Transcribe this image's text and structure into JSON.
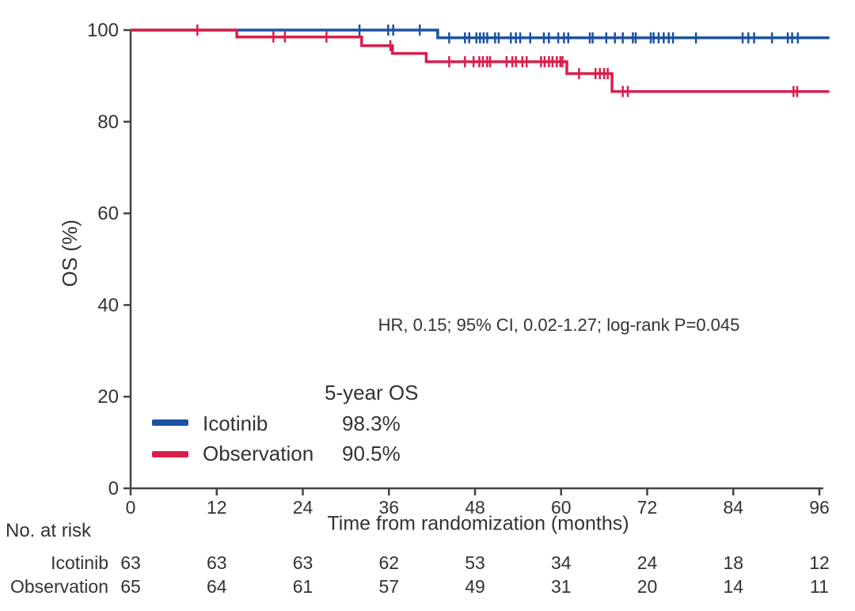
{
  "chart_data": {
    "type": "line",
    "subtype": "kaplan-meier-step",
    "title": "",
    "xlabel": "Time from randomization (months)",
    "ylabel": "OS (%)",
    "xlim": [
      0,
      96
    ],
    "ylim": [
      0,
      100
    ],
    "xticks": [
      0,
      12,
      24,
      36,
      48,
      60,
      72,
      84,
      96
    ],
    "yticks": [
      0,
      20,
      40,
      60,
      80,
      100
    ],
    "grid": false,
    "axis_color": "#444444",
    "annotation": "HR, 0.15; 95% CI, 0.02-1.27; log-rank P=0.045",
    "legend": {
      "header": "5-year OS",
      "position": "lower-left",
      "items": [
        {
          "label": "Icotinib",
          "value": "98.3%",
          "color": "#1d52a2"
        },
        {
          "label": "Observation",
          "value": "90.5%",
          "color": "#d91e4c"
        }
      ]
    },
    "series": [
      {
        "name": "Icotinib",
        "color": "#1d52a2",
        "steps": [
          [
            0,
            100
          ],
          [
            42.8,
            100
          ],
          [
            42.8,
            98.3
          ],
          [
            97.4,
            98.3
          ]
        ],
        "censors": [
          [
            31.9,
            100
          ],
          [
            35.9,
            100
          ],
          [
            36.6,
            100
          ],
          [
            40.3,
            100
          ],
          [
            44.4,
            98.3
          ],
          [
            46.6,
            98.3
          ],
          [
            47.2,
            98.3
          ],
          [
            48.2,
            98.3
          ],
          [
            48.7,
            98.3
          ],
          [
            49.2,
            98.3
          ],
          [
            49.7,
            98.3
          ],
          [
            50.8,
            98.3
          ],
          [
            51.3,
            98.3
          ],
          [
            53.0,
            98.3
          ],
          [
            53.7,
            98.3
          ],
          [
            54.3,
            98.3
          ],
          [
            55.7,
            98.3
          ],
          [
            57.6,
            98.3
          ],
          [
            58.3,
            98.3
          ],
          [
            59.6,
            98.3
          ],
          [
            60.4,
            98.3
          ],
          [
            61.0,
            98.3
          ],
          [
            64.0,
            98.3
          ],
          [
            64.4,
            98.3
          ],
          [
            66.3,
            98.3
          ],
          [
            67.5,
            98.3
          ],
          [
            68.6,
            98.3
          ],
          [
            70.0,
            98.3
          ],
          [
            70.4,
            98.3
          ],
          [
            72.5,
            98.3
          ],
          [
            72.9,
            98.3
          ],
          [
            73.6,
            98.3
          ],
          [
            74.3,
            98.3
          ],
          [
            75.0,
            98.3
          ],
          [
            75.6,
            98.3
          ],
          [
            78.8,
            98.3
          ],
          [
            85.3,
            98.3
          ],
          [
            86.1,
            98.3
          ],
          [
            86.9,
            98.3
          ],
          [
            89.4,
            98.3
          ],
          [
            91.6,
            98.3
          ],
          [
            92.2,
            98.3
          ],
          [
            93.0,
            98.3
          ]
        ]
      },
      {
        "name": "Observation",
        "color": "#d91e4c",
        "steps": [
          [
            0,
            100
          ],
          [
            14.8,
            100
          ],
          [
            14.8,
            98.5
          ],
          [
            32.2,
            98.5
          ],
          [
            32.2,
            96.6
          ],
          [
            36.5,
            96.6
          ],
          [
            36.5,
            94.9
          ],
          [
            41.2,
            94.9
          ],
          [
            41.2,
            93.1
          ],
          [
            60.8,
            93.1
          ],
          [
            60.8,
            90.5
          ],
          [
            67.1,
            90.5
          ],
          [
            67.1,
            86.6
          ],
          [
            97.4,
            86.6
          ]
        ],
        "censors": [
          [
            9.3,
            100
          ],
          [
            19.9,
            98.5
          ],
          [
            21.5,
            98.5
          ],
          [
            27.3,
            98.5
          ],
          [
            36.2,
            96.6
          ],
          [
            44.4,
            93.1
          ],
          [
            46.6,
            93.1
          ],
          [
            47.8,
            93.1
          ],
          [
            48.6,
            93.1
          ],
          [
            49.1,
            93.1
          ],
          [
            49.7,
            93.1
          ],
          [
            50.1,
            93.1
          ],
          [
            52.4,
            93.1
          ],
          [
            53.2,
            93.1
          ],
          [
            53.7,
            93.1
          ],
          [
            54.6,
            93.1
          ],
          [
            55.2,
            93.1
          ],
          [
            57.2,
            93.1
          ],
          [
            57.7,
            93.1
          ],
          [
            58.3,
            93.1
          ],
          [
            58.8,
            93.1
          ],
          [
            59.4,
            93.1
          ],
          [
            59.9,
            93.1
          ],
          [
            60.2,
            93.1
          ],
          [
            62.5,
            90.5
          ],
          [
            64.8,
            90.5
          ],
          [
            65.4,
            90.5
          ],
          [
            66.0,
            90.5
          ],
          [
            66.5,
            90.5
          ],
          [
            68.6,
            86.6
          ],
          [
            69.3,
            86.6
          ],
          [
            92.4,
            86.6
          ],
          [
            92.9,
            86.6
          ]
        ]
      }
    ],
    "at_risk": {
      "title": "No. at risk",
      "times": [
        0,
        12,
        24,
        36,
        48,
        60,
        72,
        84,
        96
      ],
      "rows": [
        {
          "label": "Icotinib",
          "counts": [
            63,
            63,
            63,
            62,
            53,
            34,
            24,
            18,
            12
          ]
        },
        {
          "label": "Observation",
          "counts": [
            65,
            64,
            61,
            57,
            49,
            31,
            20,
            14,
            11
          ]
        }
      ]
    }
  }
}
